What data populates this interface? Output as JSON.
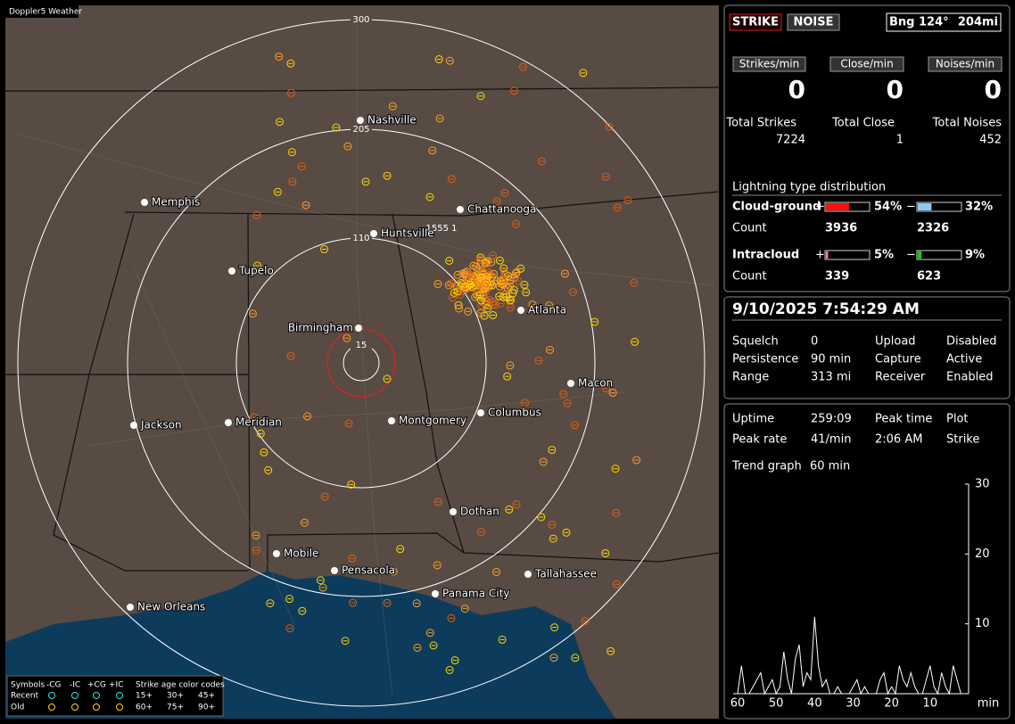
{
  "window": {
    "title": "Doppler5 Weather"
  },
  "map": {
    "ring_labels": [
      "300",
      "205",
      "110",
      "15"
    ],
    "storm_label": "1555 1",
    "cities": [
      "Nashville",
      "Memphis",
      "Chattanooga",
      "Huntsville",
      "Tupelo",
      "Birmingham",
      "Atlanta",
      "Macon",
      "Jackson",
      "Meridian",
      "Montgomery",
      "Columbus",
      "Dothan",
      "Mobile",
      "Pensacola",
      "Tallahassee",
      "Panama City",
      "New Orleans"
    ]
  },
  "legend": {
    "symbols_label": "Symbols",
    "symbols": [
      "-CG",
      "-IC",
      "+CG",
      "+IC"
    ],
    "age_title": "Strike age color codes",
    "rows": [
      {
        "label": "Recent",
        "ages": [
          "15+",
          "30+",
          "45+"
        ]
      },
      {
        "label": "Old",
        "ages": [
          "60+",
          "75+",
          "90+"
        ]
      }
    ]
  },
  "status": {
    "modes": [
      "STRIKE",
      "NOISE"
    ],
    "bearing": "Bng 124°",
    "distance": "204mi",
    "rates": [
      {
        "label": "Strikes/min",
        "value": 0
      },
      {
        "label": "Close/min",
        "value": 0
      },
      {
        "label": "Noises/min",
        "value": 0
      }
    ],
    "totals": [
      {
        "label": "Total Strikes",
        "value": 7224
      },
      {
        "label": "Total Close",
        "value": 1
      },
      {
        "label": "Total Noises",
        "value": 452
      }
    ]
  },
  "distribution": {
    "title": "Lightning type distribution",
    "signs": [
      "+",
      "−"
    ],
    "count_label": "Count",
    "rows": [
      {
        "label": "Cloud-ground",
        "positive": {
          "value": 54,
          "label": "54%"
        },
        "negative": {
          "value": 32,
          "label": "32%"
        },
        "positive_count": 3936,
        "negative_count": 2326,
        "colors": [
          "#ff1010",
          "#8cc8f0"
        ]
      },
      {
        "label": "Intracloud",
        "positive": {
          "value": 5,
          "label": "5%"
        },
        "negative": {
          "value": 9,
          "label": "9%"
        },
        "positive_count": 339,
        "negative_count": 623,
        "colors": [
          "#f080b0",
          "#20c020"
        ]
      }
    ]
  },
  "settings": {
    "datetime": "9/10/2025 7:54:29 AM",
    "rows": [
      {
        "cells": [
          "Squelch",
          "0",
          "Upload",
          "Disabled"
        ],
        "color": "#aaaaaa"
      },
      {
        "cells": [
          "Persistence",
          "90 min",
          "Capture",
          "Active"
        ],
        "color": "#22dd22"
      },
      {
        "cells": [
          "Range",
          "313 mi",
          "Receiver",
          "Enabled"
        ],
        "color": "#22dd22"
      }
    ]
  },
  "stats": {
    "rows": [
      [
        "Uptime",
        "259:09",
        "Peak time",
        "Plot"
      ],
      [
        "Peak rate",
        "41/min",
        "2:06 AM",
        "Strike"
      ],
      [
        "Trend graph",
        "60 min"
      ]
    ]
  },
  "trend": {
    "type": "line",
    "color": "#ffffff",
    "ylim": [
      0,
      30
    ],
    "yticks": [
      10,
      20,
      30
    ],
    "xlim": [
      60,
      0
    ],
    "xticks": [
      60,
      50,
      40,
      30,
      20,
      10
    ],
    "x_unit": "min",
    "x": [
      60,
      59,
      58,
      57,
      56,
      55,
      54,
      53,
      52,
      51,
      50,
      49,
      48,
      47,
      46,
      45,
      44,
      43,
      42,
      41,
      40,
      39,
      38,
      37,
      36,
      35,
      34,
      33,
      32,
      31,
      30,
      29,
      28,
      27,
      26,
      25,
      24,
      23,
      22,
      21,
      20,
      19,
      18,
      17,
      16,
      15,
      14,
      13,
      12,
      11,
      10,
      9,
      8,
      7,
      6,
      5,
      4,
      3,
      2,
      1,
      0
    ],
    "values": [
      0,
      4,
      0,
      0,
      1,
      2,
      3,
      0,
      1,
      2,
      0,
      1,
      6,
      2,
      0,
      5,
      7,
      1,
      3,
      2,
      11,
      4,
      1,
      2,
      0,
      0,
      1,
      0,
      0,
      0,
      1,
      2,
      0,
      1,
      0,
      0,
      0,
      2,
      3,
      0,
      1,
      0,
      4,
      2,
      1,
      3,
      1,
      0,
      0,
      2,
      4,
      1,
      0,
      3,
      1,
      0,
      4,
      2,
      0,
      0,
      0
    ]
  }
}
